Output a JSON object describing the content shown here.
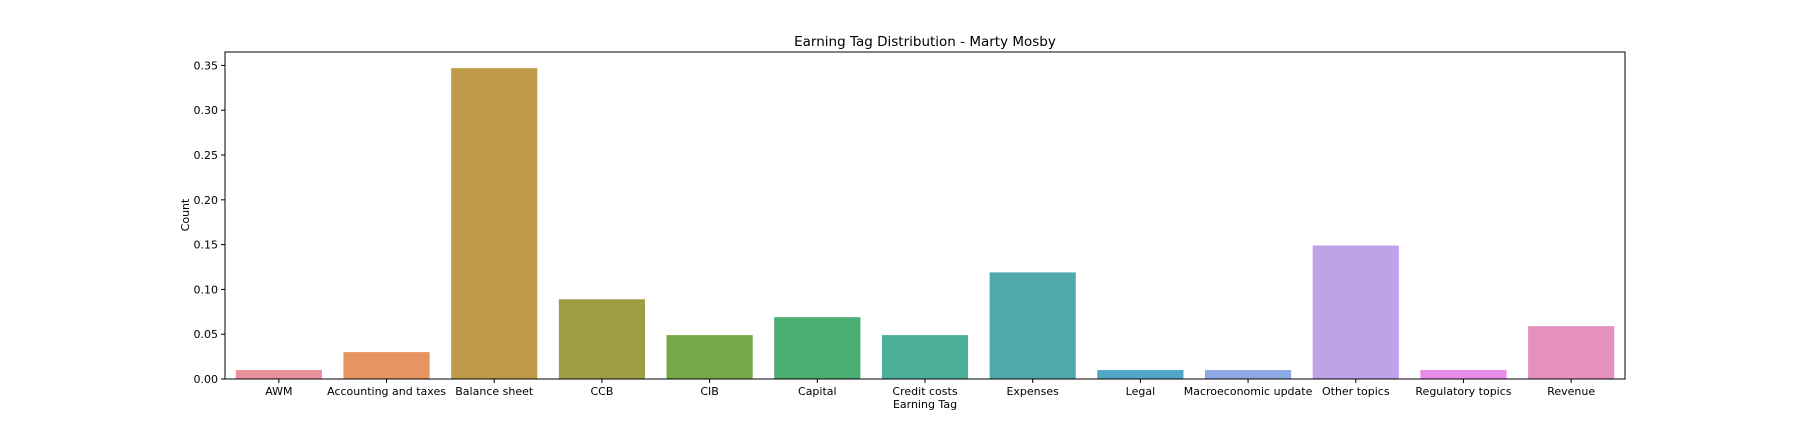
{
  "chart_data": {
    "type": "bar",
    "title": "Earning Tag Distribution - Marty Mosby",
    "xlabel": "Earning Tag",
    "ylabel": "Count",
    "categories": [
      "AWM",
      "Accounting and taxes",
      "Balance sheet",
      "CCB",
      "CIB",
      "Capital",
      "Credit costs",
      "Expenses",
      "Legal",
      "Macroeconomic update",
      "Other topics",
      "Regulatory topics",
      "Revenue"
    ],
    "values": [
      0.01,
      0.03,
      0.347,
      0.089,
      0.049,
      0.069,
      0.049,
      0.119,
      0.01,
      0.01,
      0.149,
      0.01,
      0.059
    ],
    "colors": [
      "#e8919c",
      "#e69460",
      "#bf9a48",
      "#9d9e44",
      "#74a949",
      "#4aad72",
      "#4caf97",
      "#4fa9aa",
      "#4fa6c5",
      "#8da9e3",
      "#bfa2e8",
      "#e68ce6",
      "#e690c0"
    ],
    "ylim": [
      0,
      0.365
    ],
    "yticks": [
      0.0,
      0.05,
      0.1,
      0.15,
      0.2,
      0.25,
      0.3,
      0.35
    ],
    "ytick_labels": [
      "0.00",
      "0.05",
      "0.10",
      "0.15",
      "0.20",
      "0.25",
      "0.30",
      "0.35"
    ],
    "grid": false,
    "legend": "none"
  }
}
